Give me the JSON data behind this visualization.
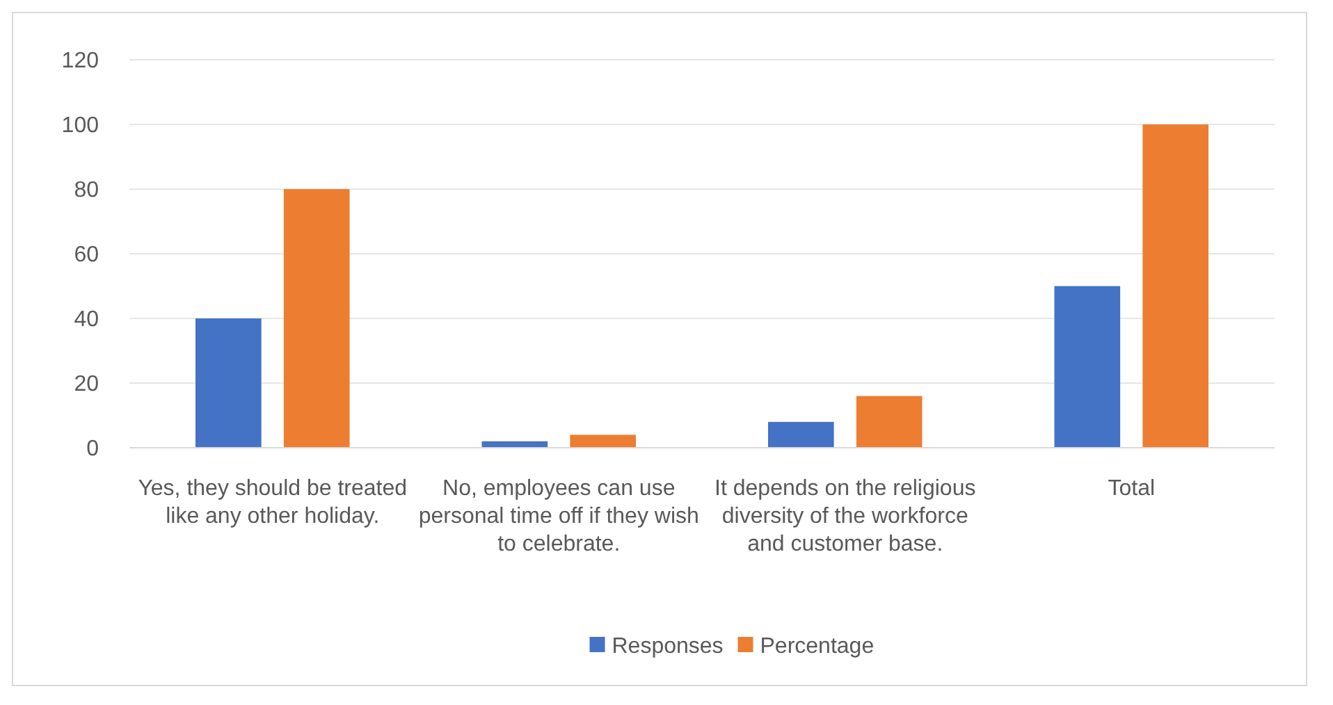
{
  "chart_data": {
    "type": "bar",
    "categories": [
      "Yes, they should be treated like any other holiday.",
      "No, employees can use personal time off if they wish to celebrate.",
      "It depends on the religious diversity of the workforce and customer base.",
      "Total"
    ],
    "series": [
      {
        "name": "Responses",
        "color": "#4472c4",
        "values": [
          40,
          2,
          8,
          50
        ]
      },
      {
        "name": "Percentage",
        "color": "#ed7d31",
        "values": [
          80,
          4,
          16,
          100
        ]
      }
    ],
    "ylim": [
      0,
      120
    ],
    "yticks": [
      0,
      20,
      40,
      60,
      80,
      100,
      120
    ],
    "grid": "y",
    "legend": "bottom"
  }
}
